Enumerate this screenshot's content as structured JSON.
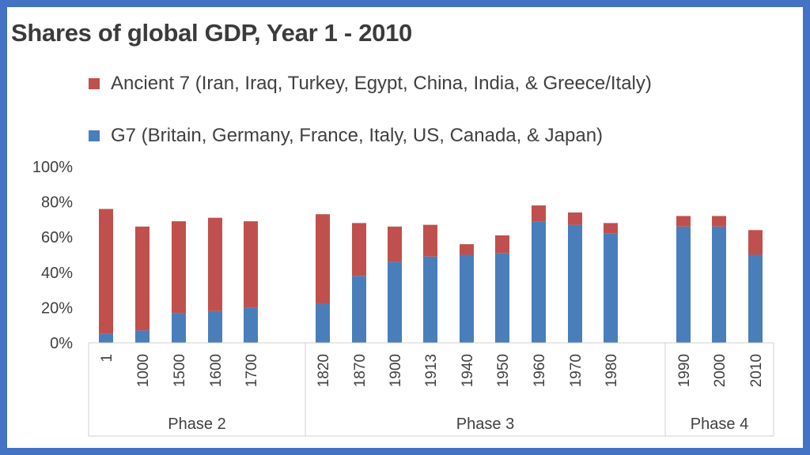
{
  "chart_data": {
    "type": "bar",
    "stacked": true,
    "title": "Shares of global GDP, Year 1 - 2010",
    "xlabel": "",
    "ylabel": "",
    "ylim": [
      0,
      100
    ],
    "y_ticks": [
      "0%",
      "20%",
      "40%",
      "60%",
      "80%",
      "100%"
    ],
    "legend_position": "top",
    "grid": false,
    "groups": [
      {
        "label": "Phase 2",
        "categories": [
          "1",
          "1000",
          "1500",
          "1600",
          "1700"
        ]
      },
      {
        "label": "Phase 3",
        "categories": [
          "1820",
          "1870",
          "1900",
          "1913",
          "1940",
          "1950",
          "1960",
          "1970",
          "1980"
        ]
      },
      {
        "label": "Phase 4",
        "categories": [
          "1990",
          "2000",
          "2010"
        ]
      }
    ],
    "series": [
      {
        "name": "G7 (Britain, Germany, France, Italy, US, Canada, & Japan)",
        "color": "#4a7ebb",
        "values": [
          5,
          7,
          17,
          18,
          20,
          22,
          38,
          46,
          49,
          50,
          51,
          69,
          67,
          62,
          66,
          66,
          50
        ]
      },
      {
        "name": "Ancient 7 (Iran, Iraq, Turkey, Egypt, China, India, & Greece/Italy)",
        "color": "#c0504d",
        "values": [
          71,
          59,
          52,
          53,
          49,
          51,
          30,
          20,
          18,
          6,
          10,
          9,
          7,
          6,
          6,
          6,
          14
        ]
      }
    ]
  }
}
